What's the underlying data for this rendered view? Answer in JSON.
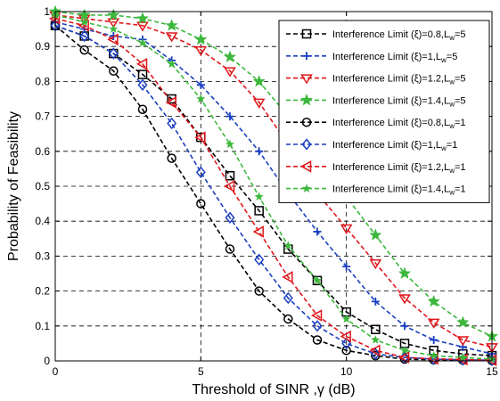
{
  "chart_data": {
    "type": "line",
    "xlabel": "Threshold of SINR ,γ (dB)",
    "ylabel": "Probability of Feasibility",
    "xlim": [
      0,
      15
    ],
    "ylim": [
      0,
      1
    ],
    "xticks": [
      0,
      5,
      10,
      15
    ],
    "yticks": [
      0,
      0.1,
      0.2,
      0.3,
      0.4,
      0.5,
      0.6,
      0.7,
      0.8,
      0.9,
      1
    ],
    "grid": true,
    "legend_position": "top-right",
    "x": [
      0,
      1,
      2,
      3,
      4,
      5,
      6,
      7,
      8,
      9,
      10,
      11,
      12,
      13,
      14,
      15
    ],
    "series": [
      {
        "name": "Interference Limit (ξ)=0.8,L",
        "sub": "w",
        "suffix": "=5",
        "color": "#000000",
        "marker": "square",
        "values": [
          0.96,
          0.93,
          0.88,
          0.82,
          0.75,
          0.64,
          0.53,
          0.43,
          0.32,
          0.23,
          0.14,
          0.09,
          0.05,
          0.03,
          0.02,
          0.015
        ]
      },
      {
        "name": "Interference Limit (ξ)=1,L",
        "sub": "w",
        "suffix": "=5",
        "color": "#1a3fbf",
        "marker": "plus",
        "values": [
          0.97,
          0.95,
          0.93,
          0.92,
          0.86,
          0.79,
          0.7,
          0.6,
          0.48,
          0.37,
          0.27,
          0.17,
          0.1,
          0.06,
          0.04,
          0.02
        ]
      },
      {
        "name": "Interference Limit (ξ)=1.2,L",
        "sub": "w",
        "suffix": "=5",
        "color": "#e0161b",
        "marker": "triangle-down",
        "values": [
          0.99,
          0.98,
          0.97,
          0.96,
          0.93,
          0.89,
          0.83,
          0.74,
          0.62,
          0.48,
          0.38,
          0.28,
          0.18,
          0.11,
          0.06,
          0.04
        ]
      },
      {
        "name": "Interference Limit (ξ)=1.4,L",
        "sub": "w",
        "suffix": "=5",
        "color": "#3cb83c",
        "marker": "star",
        "values": [
          1.0,
          0.99,
          0.99,
          0.98,
          0.96,
          0.92,
          0.87,
          0.8,
          0.7,
          0.6,
          0.47,
          0.36,
          0.25,
          0.17,
          0.11,
          0.07
        ]
      },
      {
        "name": "Interference Limit (ξ)=0.8,L",
        "sub": "w",
        "suffix": "=1",
        "color": "#000000",
        "marker": "circle",
        "values": [
          0.96,
          0.89,
          0.83,
          0.72,
          0.58,
          0.45,
          0.32,
          0.2,
          0.12,
          0.06,
          0.03,
          0.015,
          0.005,
          0.003,
          0.002,
          0.001
        ]
      },
      {
        "name": "Interference Limit (ξ)=1,L",
        "sub": "w",
        "suffix": "=1",
        "color": "#1a3fbf",
        "marker": "diamond",
        "values": [
          0.96,
          0.93,
          0.88,
          0.79,
          0.68,
          0.54,
          0.41,
          0.29,
          0.18,
          0.1,
          0.05,
          0.02,
          0.01,
          0.005,
          0.003,
          0.002
        ]
      },
      {
        "name": "Interference Limit (ξ)=1.2,L",
        "sub": "w",
        "suffix": "=1",
        "color": "#e0161b",
        "marker": "triangle-left",
        "values": [
          0.98,
          0.96,
          0.92,
          0.85,
          0.74,
          0.64,
          0.5,
          0.37,
          0.24,
          0.13,
          0.07,
          0.03,
          0.01,
          0.006,
          0.004,
          0.002
        ]
      },
      {
        "name": "Interference Limit (ξ)=1.4,L",
        "sub": "w",
        "suffix": "=1",
        "color": "#3cb83c",
        "marker": "star-small",
        "values": [
          0.99,
          0.97,
          0.95,
          0.91,
          0.85,
          0.75,
          0.62,
          0.47,
          0.33,
          0.23,
          0.12,
          0.06,
          0.03,
          0.015,
          0.01,
          0.005
        ]
      }
    ]
  }
}
